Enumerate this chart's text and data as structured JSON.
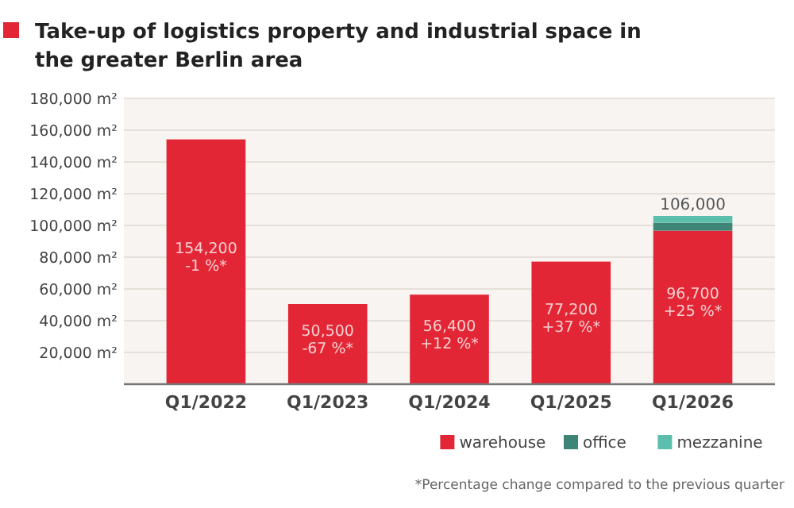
{
  "chart_data": {
    "type": "bar",
    "title": "Take-up of logistics property and industrial space in the greater Berlin area",
    "categories": [
      "Q1/2022",
      "Q1/2023",
      "Q1/2024",
      "Q1/2025",
      "Q1/2026"
    ],
    "stacked": true,
    "series": [
      {
        "name": "warehouse",
        "color": "#e32636",
        "values": [
          154200,
          50500,
          56400,
          77200,
          96700
        ],
        "value_labels": [
          "154,200\n-1 %*",
          "50,500\n-67 %*",
          "56,400\n+12 %*",
          "77,200\n+37 %*",
          "96,700\n+25 %*"
        ]
      },
      {
        "name": "office",
        "color": "#3f8577",
        "values": [
          0,
          0,
          0,
          0,
          5000
        ]
      },
      {
        "name": "mezzanine",
        "color": "#5cbfae",
        "values": [
          0,
          0,
          0,
          0,
          4300
        ]
      }
    ],
    "totals": [
      null,
      null,
      null,
      null,
      "106,000"
    ],
    "ylim": [
      0,
      180000
    ],
    "yticks": [
      {
        "value": 20000,
        "label": "20,000 m²"
      },
      {
        "value": 40000,
        "label": "40,000 m²"
      },
      {
        "value": 60000,
        "label": "60,000 m²"
      },
      {
        "value": 80000,
        "label": "80,000 m²"
      },
      {
        "value": 100000,
        "label": "100,000 m²"
      },
      {
        "value": 120000,
        "label": "120,000 m²"
      },
      {
        "value": 140000,
        "label": "140,000 m²"
      },
      {
        "value": 160000,
        "label": "160,000 m²"
      },
      {
        "value": 180000,
        "label": "180,000 m²"
      }
    ],
    "grid": "y",
    "legend": "bottom right",
    "annotations": [
      "*Percentage change compared to the previous quarter"
    ]
  }
}
